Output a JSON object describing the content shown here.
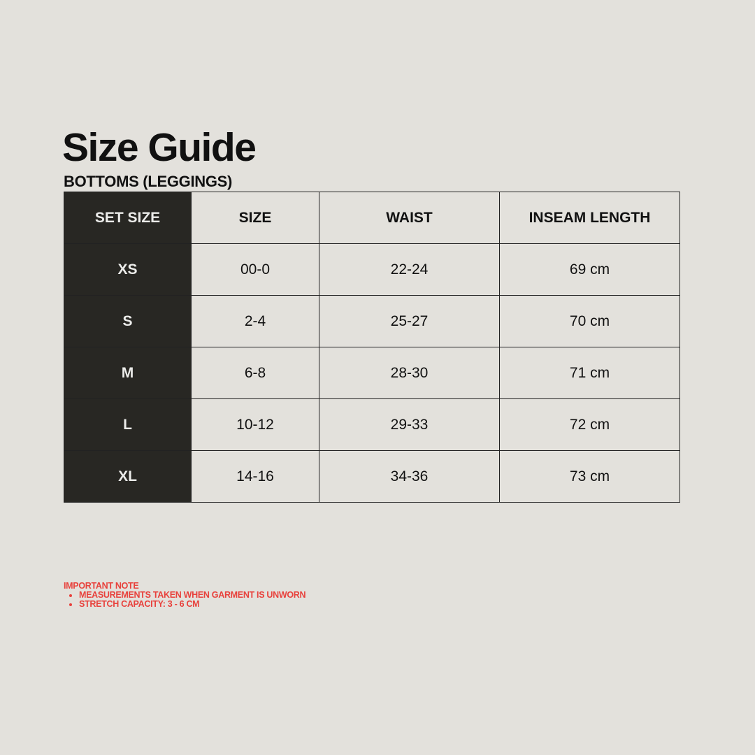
{
  "title": "Size Guide",
  "subtitle": "BOTTOMS (LEGGINGS)",
  "colors": {
    "background": "#e3e1dc",
    "dark_column": "#282723",
    "note": "#e8413c"
  },
  "table": {
    "headers": [
      "SET SIZE",
      "SIZE",
      "WAIST",
      "INSEAM LENGTH"
    ],
    "rows": [
      [
        "XS",
        "00-0",
        "22-24",
        "69 cm"
      ],
      [
        "S",
        "2-4",
        "25-27",
        "70 cm"
      ],
      [
        "M",
        "6-8",
        "28-30",
        "71 cm"
      ],
      [
        "L",
        "10-12",
        "29-33",
        "72 cm"
      ],
      [
        "XL",
        "14-16",
        "34-36",
        "73 cm"
      ]
    ]
  },
  "note": {
    "heading": "IMPORTANT NOTE",
    "items": [
      "MEASUREMENTS TAKEN WHEN GARMENT IS UNWORN",
      "STRETCH CAPACITY: 3 - 6 CM"
    ]
  }
}
